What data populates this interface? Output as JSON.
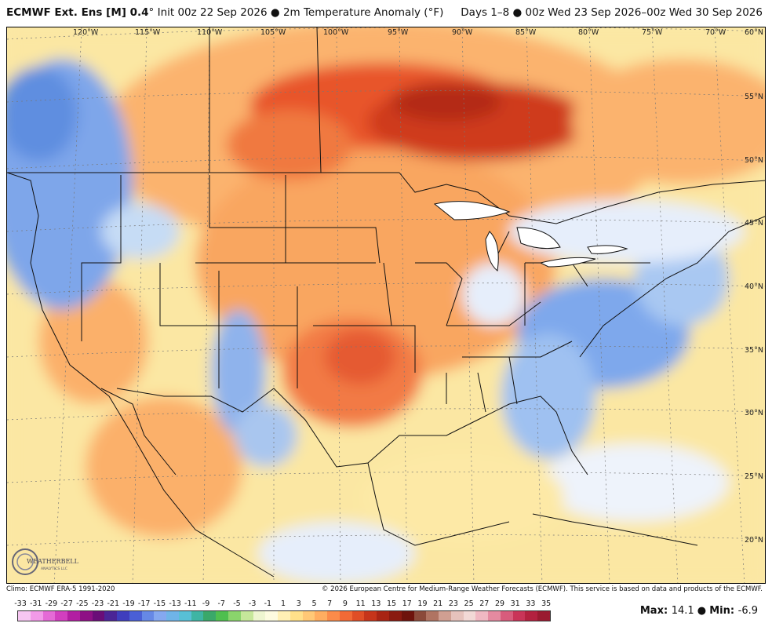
{
  "header": {
    "model": "ECMWF Ext.  Ens [M] 0.4",
    "degree": "°",
    "init": " Init 00z 22 Sep 2026",
    "bullet": " ● ",
    "field": "2m Temperature Anomaly (°F)",
    "valid": "Days 1–8 ● 00z Wed 23 Sep 2026–00z Wed 30 Sep 2026"
  },
  "map": {
    "longitude_labels": [
      "120°W",
      "115°W",
      "110°W",
      "105°W",
      "100°W",
      "95°W",
      "90°W",
      "85°W",
      "80°W",
      "75°W",
      "70°W"
    ],
    "latitude_labels": [
      "60°N",
      "55°N",
      "50°N",
      "45°N",
      "40°N",
      "35°N",
      "30°N",
      "25°N",
      "20°N"
    ]
  },
  "logo": {
    "text": "WEATHERBELL",
    "sub": "ANALYTICS LLC"
  },
  "footer": {
    "climo": "Climo: ECMWF ERA-5 1991-2020",
    "credit": "© 2026 European Centre for Medium-Range Weather Forecasts (ECMWF). This service is based on data and products of the ECMWF."
  },
  "colorbar": {
    "ticks": [
      "-33",
      "-31",
      "-29",
      "-27",
      "-25",
      "-23",
      "-21",
      "-19",
      "-17",
      "-15",
      "-13",
      "-11",
      "-9",
      "-7",
      "-5",
      "-3",
      "-1",
      "1",
      "3",
      "5",
      "7",
      "9",
      "11",
      "13",
      "15",
      "17",
      "19",
      "21",
      "23",
      "25",
      "27",
      "29",
      "31",
      "33",
      "35"
    ],
    "colors": [
      "#f7c6f2",
      "#f29ae8",
      "#e56ad6",
      "#d23fbf",
      "#b21ea2",
      "#8e1085",
      "#6a0d78",
      "#4b2596",
      "#3f3ebd",
      "#4a5fd6",
      "#6688e6",
      "#85a8f0",
      "#6fb4e8",
      "#58c0d6",
      "#3fb5a4",
      "#3aa86a",
      "#4fbf4f",
      "#8ad46c",
      "#c6e79a",
      "#eef5d0",
      "#fdfbe0",
      "#fff0b5",
      "#ffe08a",
      "#ffc876",
      "#ffad60",
      "#fb8b4a",
      "#f26a36",
      "#e04e26",
      "#c6341a",
      "#a82414",
      "#8a1a10",
      "#6e130c",
      "#8b4a3a",
      "#b07462",
      "#d09f92",
      "#e6c2bc",
      "#f2d9d6",
      "#f0b8c2",
      "#e58aa0",
      "#d85c7c",
      "#c93458",
      "#b3213f",
      "#9a1a30"
    ]
  },
  "stats": {
    "max_label": "Max: ",
    "max_value": "14.1",
    "sep": " ● ",
    "min_label": "Min: ",
    "min_value": "-6.9"
  }
}
